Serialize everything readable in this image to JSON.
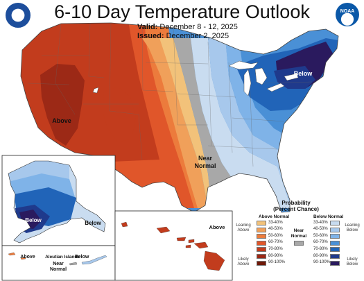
{
  "title": "6-10 Day Temperature Outlook",
  "valid_label": "Valid:",
  "valid_value": "December 8 - 12, 2025",
  "issued_label": "Issued:",
  "issued_value": "December 2, 2025",
  "logos": {
    "left_icon": "doc-seal-icon",
    "right_icon": "noaa-logo-icon",
    "right_text": "NOAA"
  },
  "map_labels": {
    "above_west": "Above",
    "below_northeast": "Below",
    "near_normal_south": "Near\nNormal",
    "alaska_below_sw": "Below",
    "alaska_below_se": "Below",
    "hawaii_above": "Above",
    "aleutian_title": "Aleutian Islands",
    "aleutian_above": "Above",
    "aleutian_near": "Near\nNormal",
    "aleutian_below": "Below"
  },
  "legend": {
    "title": "Probability\n(Percent Chance)",
    "above_header": "Above Normal",
    "below_header": "Below Normal",
    "near_header": "Near\nNormal",
    "leaning_above": "Leaning\nAbove",
    "likely_above": "Likely\nAbove",
    "leaning_below": "Leaning\nBelow",
    "likely_below": "Likely\nBelow",
    "ranges": [
      "33-40%",
      "40-50%",
      "50-60%",
      "60-70%",
      "70-80%",
      "80-90%",
      "90-100%"
    ],
    "above_colors": [
      "#f2c27a",
      "#f0a05a",
      "#ec7b3c",
      "#e0562a",
      "#c23c1d",
      "#9c2916",
      "#6f1808"
    ],
    "below_colors": [
      "#c9dcf0",
      "#a7c8ec",
      "#7fb3e8",
      "#4a90d6",
      "#2164b8",
      "#1f3a8c",
      "#2a1a5e"
    ],
    "near_color": "#a8a8a8"
  }
}
